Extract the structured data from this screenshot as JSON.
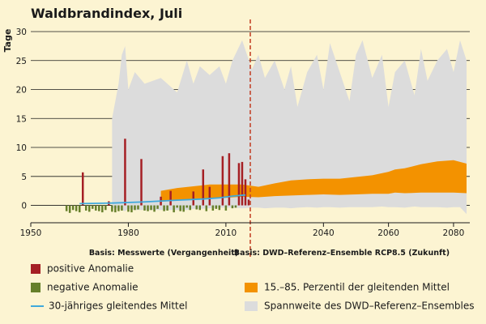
{
  "colors": {
    "positive": "#a51f24",
    "negative": "#667f2a",
    "mean_line": "#3fa9dc",
    "percentile_band": "#f39200",
    "ensemble_range": "#dcdcdc",
    "divider": "#c4452b",
    "background": "#fcf4d2"
  },
  "chart_data": {
    "type": "bar",
    "title": "Waldbrandindex, Juli",
    "ylabel": "Tage",
    "xlabel": "",
    "xlim": [
      1950,
      2085
    ],
    "ylim": [
      -3,
      30
    ],
    "xticks": [
      1950,
      1980,
      2010,
      2040,
      2060,
      2080
    ],
    "yticks": [
      0,
      5,
      10,
      15,
      20,
      25,
      30
    ],
    "grid": true,
    "divider_year": 2017.5,
    "basis_past": "Basis: Messwerte (Vergangenheit)",
    "basis_future": "Basis: DWD–Referenz–Ensemble RCP8.5 (Zukunft)",
    "anomalies": {
      "years": [
        1961,
        1962,
        1963,
        1964,
        1965,
        1966,
        1967,
        1968,
        1969,
        1970,
        1971,
        1972,
        1973,
        1974,
        1975,
        1976,
        1977,
        1978,
        1979,
        1980,
        1981,
        1982,
        1983,
        1984,
        1985,
        1986,
        1987,
        1988,
        1989,
        1990,
        1991,
        1992,
        1993,
        1994,
        1995,
        1996,
        1997,
        1998,
        1999,
        2000,
        2001,
        2002,
        2003,
        2004,
        2005,
        2006,
        2007,
        2008,
        2009,
        2010,
        2011,
        2012,
        2013,
        2014,
        2015,
        2016,
        2017
      ],
      "values": [
        -1,
        -1.3,
        -0.8,
        -1,
        -1.2,
        5.7,
        -0.9,
        -1.1,
        -0.6,
        -0.9,
        -1,
        -1.2,
        -0.8,
        0.7,
        -1.1,
        -1.2,
        -1,
        -0.9,
        11.5,
        -1.1,
        -1.2,
        -0.8,
        -0.7,
        8,
        -0.9,
        -1,
        -0.8,
        -1.1,
        -0.6,
        1.5,
        -1,
        -0.9,
        2.5,
        -1.2,
        -0.4,
        -1,
        -1.1,
        -0.4,
        -0.8,
        2.4,
        -0.7,
        -0.8,
        6.2,
        -1,
        3.2,
        -0.9,
        -0.6,
        -0.8,
        8.5,
        -0.9,
        9,
        -0.5,
        -0.4,
        7.3,
        7.5,
        4.5,
        1
      ]
    },
    "mean_line": {
      "x": [
        1965,
        1975,
        1985,
        1995,
        2003,
        2008,
        2012,
        2016
      ],
      "y": [
        0.3,
        0.4,
        0.6,
        0.9,
        1.1,
        1.3,
        1.6,
        1.8
      ]
    },
    "ensemble_range": {
      "x": [
        1975,
        1977,
        1978,
        1979,
        1980,
        1982,
        1985,
        1990,
        1995,
        1998,
        2000,
        2002,
        2005,
        2008,
        2010,
        2012,
        2015,
        2018,
        2020,
        2022,
        2025,
        2028,
        2030,
        2032,
        2035,
        2038,
        2040,
        2042,
        2045,
        2048,
        2050,
        2052,
        2055,
        2058,
        2060,
        2062,
        2065,
        2068,
        2070,
        2072,
        2075,
        2078,
        2080,
        2082,
        2084
      ],
      "upper": [
        15,
        21,
        26,
        27.5,
        20,
        23,
        21,
        22,
        19.5,
        25,
        21,
        24,
        22.5,
        24,
        21,
        25,
        28.5,
        23.5,
        26,
        22,
        25,
        20,
        24,
        17,
        23,
        26,
        20,
        28,
        23,
        18,
        26,
        28.5,
        22,
        26,
        17,
        23,
        25,
        19,
        27,
        21.5,
        25,
        27,
        23,
        28.5,
        25
      ],
      "lower": [
        -0.5,
        -0.5,
        -0.8,
        -1,
        -0.5,
        -0.8,
        -0.8,
        -0.8,
        -0.8,
        -0.8,
        -0.6,
        -0.6,
        -0.5,
        -0.4,
        -0.4,
        -0.4,
        -0.5,
        -0.4,
        -0.4,
        -0.5,
        -0.4,
        -0.4,
        -0.5,
        -0.4,
        -0.3,
        -0.4,
        -0.3,
        -0.3,
        -0.4,
        -0.3,
        -0.3,
        -0.3,
        -0.3,
        -0.2,
        -0.3,
        -0.3,
        -0.4,
        -0.2,
        -0.3,
        -0.3,
        -0.3,
        -0.4,
        -0.3,
        -0.3,
        -1.5
      ]
    },
    "percentile_band": {
      "x": [
        1990,
        1995,
        2000,
        2005,
        2010,
        2015,
        2020,
        2025,
        2030,
        2035,
        2040,
        2045,
        2050,
        2055,
        2060,
        2062,
        2065,
        2070,
        2075,
        2080,
        2084
      ],
      "upper": [
        2.5,
        3,
        3.3,
        3.6,
        3.6,
        3.6,
        3.2,
        3.8,
        4.3,
        4.5,
        4.6,
        4.6,
        4.9,
        5.2,
        5.8,
        6.2,
        6.4,
        7.1,
        7.6,
        7.8,
        7.2
      ],
      "lower": [
        0.6,
        0.9,
        1,
        1.2,
        1.3,
        1.5,
        1.4,
        1.6,
        1.7,
        1.8,
        1.9,
        1.8,
        1.9,
        2,
        2,
        2.2,
        2.1,
        2.2,
        2.2,
        2.2,
        2.1
      ]
    }
  },
  "legend": {
    "positive": "positive Anomalie",
    "negative": "negative Anomalie",
    "mean": "30-jähriges gleitendes Mittel",
    "percentile": "15.–85. Perzentil der gleitenden Mittel",
    "range": "Spannweite des DWD–Referenz–Ensembles"
  }
}
